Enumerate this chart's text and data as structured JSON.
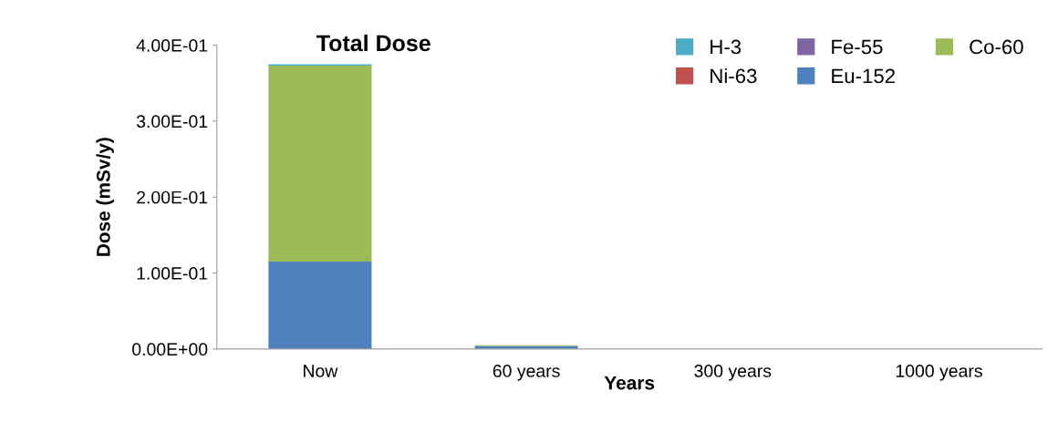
{
  "chart_data": {
    "type": "bar",
    "title": "Total Dose",
    "xlabel": "Years",
    "ylabel": "Dose (mSv/y)",
    "stacked": true,
    "categories": [
      "Now",
      "60 years",
      "300 years",
      "1000 years"
    ],
    "series": [
      {
        "name": "Eu-152",
        "color": "#4f81bd",
        "values": [
          0.115,
          0.004,
          0,
          0
        ]
      },
      {
        "name": "Ni-63",
        "color": "#c0504d",
        "values": [
          0,
          0,
          0,
          0
        ]
      },
      {
        "name": "Co-60",
        "color": "#9bbb59",
        "values": [
          0.258,
          0.001,
          0,
          0
        ]
      },
      {
        "name": "Fe-55",
        "color": "#8064a2",
        "values": [
          0,
          0,
          0,
          0
        ]
      },
      {
        "name": "H-3",
        "color": "#4bacc6",
        "values": [
          0.002,
          0,
          0,
          0
        ]
      }
    ],
    "ylim": [
      0,
      0.4
    ],
    "yticks": [
      {
        "value": 0,
        "label": "0.00E+00"
      },
      {
        "value": 0.1,
        "label": "1.00E-01"
      },
      {
        "value": 0.2,
        "label": "2.00E-01"
      },
      {
        "value": 0.3,
        "label": "3.00E-01"
      },
      {
        "value": 0.4,
        "label": "4.00E-01"
      }
    ],
    "grid": false,
    "legend": "top right"
  }
}
